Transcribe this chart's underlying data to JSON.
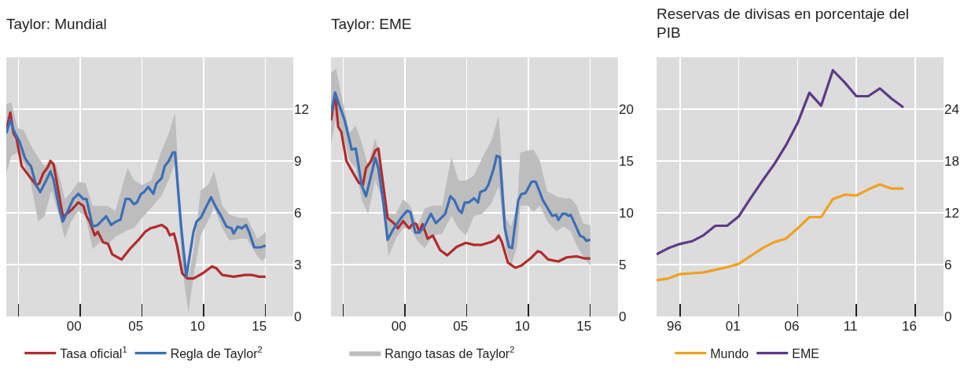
{
  "chart_data": [
    {
      "type": "line",
      "title": "Taylor: Mundial",
      "xlim": [
        "1995-01",
        "2018-04"
      ],
      "xticks": [
        {
          "value": "1996-01",
          "label": null
        },
        {
          "value": "2000-07",
          "label": "00"
        },
        {
          "value": "2001-01",
          "label": null
        },
        {
          "value": "2005-07",
          "label": "05"
        },
        {
          "value": "2006-01",
          "label": null
        },
        {
          "value": "2010-07",
          "label": "10"
        },
        {
          "value": "2011-01",
          "label": null
        },
        {
          "value": "2015-07",
          "label": "15"
        },
        {
          "value": "2016-01",
          "label": null
        }
      ],
      "ylim": [
        0,
        15
      ],
      "yticks": [
        0,
        3,
        6,
        9,
        12
      ],
      "grid": true,
      "legend": "bottom",
      "series": [
        {
          "type": "area",
          "color": "#bdbdbd",
          "x": [
            "1995-01",
            "1995-06",
            "1995-12",
            "1996-06",
            "1996-12",
            "1997-08",
            "1998-02",
            "1998-09",
            "1999-02",
            "1999-10",
            "2000-04",
            "2000-11",
            "2001-06",
            "2002-01",
            "2002-08",
            "2003-04",
            "2003-11",
            "2004-11",
            "2005-05",
            "2006-01",
            "2006-10",
            "2007-08",
            "2008-03",
            "2008-09",
            "2009-04",
            "2009-10",
            "2010-03",
            "2010-10",
            "2011-05",
            "2011-11",
            "2012-07",
            "2013-02",
            "2013-12",
            "2014-07",
            "2015-05",
            "2015-10",
            "2016-01"
          ],
          "values": [
            null,
            null,
            null,
            null,
            null,
            null,
            null,
            null,
            null,
            null,
            null,
            null,
            null,
            null,
            null,
            null,
            null,
            null,
            null,
            null,
            null,
            null,
            null,
            null,
            null,
            null,
            null,
            null,
            null,
            null,
            null,
            null,
            null,
            null,
            null,
            null,
            null
          ],
          "upper": [
            12.3,
            12.4,
            10.9,
            10.8,
            10.0,
            9.2,
            8.7,
            9.0,
            8.7,
            6.8,
            7.2,
            7.8,
            7.7,
            6.4,
            6.4,
            6.4,
            6.1,
            8.6,
            7.9,
            7.6,
            7.9,
            9.6,
            10.6,
            11.8,
            4.4,
            2.3,
            3.8,
            7.3,
            7.6,
            8.4,
            6.4,
            5.9,
            5.7,
            5.7,
            4.5,
            4.7,
            4.9
          ],
          "lower": [
            8.3,
            9.3,
            9.5,
            8.9,
            8.0,
            5.5,
            5.8,
            7.3,
            6.3,
            4.5,
            5.5,
            6.1,
            5.8,
            3.9,
            4.3,
            4.2,
            4.6,
            5.0,
            5.1,
            5.7,
            6.3,
            7.0,
            7.9,
            8.9,
            2.9,
            0.2,
            2.3,
            4.7,
            5.5,
            6.3,
            5.1,
            4.4,
            4.5,
            4.5,
            3.5,
            3.2,
            3.4
          ]
        },
        {
          "name": "Tasa oficial$^{1}$",
          "color": "#b22c2c",
          "x": [
            "1995-01",
            "1995-05",
            "1995-08",
            "1995-11",
            "1996-04",
            "1996-09",
            "1997-06",
            "1997-09",
            "1998-01",
            "1998-05",
            "1998-08",
            "1998-11",
            "1999-08",
            "1999-11",
            "2000-05",
            "2000-11",
            "2001-04",
            "2001-07",
            "2001-10",
            "2002-03",
            "2002-06",
            "2002-11",
            "2003-04",
            "2003-08",
            "2004-05",
            "2005-01",
            "2005-09",
            "2006-04",
            "2006-09",
            "2007-03",
            "2007-08",
            "2008-01",
            "2008-04",
            "2008-08",
            "2008-11",
            "2009-04",
            "2009-09",
            "2010-03",
            "2010-12",
            "2011-09",
            "2012-01",
            "2012-07",
            "2013-06",
            "2014-05",
            "2014-12",
            "2015-07",
            "2016-01"
          ],
          "values": [
            10.8,
            11.8,
            10.6,
            10.3,
            8.7,
            8.3,
            7.6,
            7.7,
            8.3,
            8.6,
            9.0,
            8.8,
            5.8,
            5.9,
            6.2,
            6.6,
            6.4,
            5.8,
            5.5,
            4.7,
            4.9,
            4.3,
            4.2,
            3.6,
            3.3,
            3.9,
            4.4,
            4.9,
            5.1,
            5.2,
            5.3,
            5.1,
            4.7,
            4.8,
            4.1,
            2.5,
            2.2,
            2.2,
            2.5,
            2.9,
            2.8,
            2.4,
            2.3,
            2.4,
            2.4,
            2.3,
            2.3
          ]
        },
        {
          "name": "Regla de Taylor$^{2}$",
          "color": "#3a6fb8",
          "x": [
            "1995-01",
            "1995-05",
            "1995-08",
            "1996-02",
            "1996-07",
            "1996-10",
            "1997-01",
            "1997-06",
            "1997-10",
            "1998-04",
            "1998-08",
            "1998-11",
            "1999-04",
            "1999-08",
            "1999-12",
            "2000-06",
            "2000-11",
            "2001-04",
            "2001-07",
            "2002-01",
            "2002-06",
            "2003-02",
            "2003-07",
            "2003-12",
            "2004-04",
            "2004-09",
            "2005-01",
            "2005-05",
            "2005-08",
            "2005-12",
            "2006-03",
            "2006-07",
            "2006-12",
            "2007-03",
            "2007-08",
            "2007-11",
            "2008-03",
            "2008-07",
            "2008-09",
            "2009-03",
            "2009-08",
            "2010-03",
            "2010-06",
            "2010-10",
            "2011-03",
            "2011-08",
            "2012-01",
            "2012-06",
            "2012-11",
            "2013-04",
            "2013-06",
            "2013-10",
            "2014-02",
            "2014-06",
            "2014-09",
            "2015-02",
            "2015-08",
            "2016-01"
          ],
          "values": [
            10.6,
            11.4,
            10.8,
            10.1,
            9.2,
            8.9,
            8.7,
            7.6,
            7.2,
            7.9,
            8.4,
            7.9,
            6.4,
            5.5,
            6.0,
            6.8,
            7.1,
            6.8,
            6.8,
            5.2,
            5.3,
            5.8,
            5.3,
            5.5,
            5.6,
            6.8,
            6.8,
            6.5,
            6.6,
            7.1,
            7.2,
            7.5,
            7.1,
            7.7,
            8.0,
            8.7,
            9.0,
            9.5,
            9.5,
            5.2,
            2.3,
            4.9,
            5.5,
            5.7,
            6.3,
            6.9,
            6.3,
            5.8,
            5.2,
            5.1,
            4.8,
            5.2,
            5.1,
            5.3,
            4.9,
            4.0,
            4.0,
            4.1
          ]
        }
      ]
    },
    {
      "type": "line",
      "title": "Taylor: EME",
      "xlim": [
        "1995-01",
        "2018-04"
      ],
      "xticks": [
        {
          "value": "1996-01",
          "label": null
        },
        {
          "value": "2000-07",
          "label": "00"
        },
        {
          "value": "2001-01",
          "label": null
        },
        {
          "value": "2005-07",
          "label": "05"
        },
        {
          "value": "2006-01",
          "label": null
        },
        {
          "value": "2010-07",
          "label": "10"
        },
        {
          "value": "2011-01",
          "label": null
        },
        {
          "value": "2015-07",
          "label": "15"
        },
        {
          "value": "2016-01",
          "label": null
        }
      ],
      "ylim": [
        0,
        25
      ],
      "yticks": [
        0,
        5,
        10,
        15,
        20
      ],
      "grid": true,
      "legend": "bottom",
      "series": [
        {
          "type": "area",
          "name": "Rango tasas de Taylor$^{2}$",
          "color": "#bdbdbd",
          "x": [
            "1995-01",
            "1995-06",
            "1995-12",
            "1996-07",
            "1997-01",
            "1997-07",
            "1998-01",
            "1998-08",
            "1999-02",
            "1999-09",
            "2000-04",
            "2000-11",
            "2001-06",
            "2002-01",
            "2002-08",
            "2003-04",
            "2004-01",
            "2004-10",
            "2005-05",
            "2005-12",
            "2006-08",
            "2007-04",
            "2008-01",
            "2008-08",
            "2009-03",
            "2009-08",
            "2010-02",
            "2010-05",
            "2010-12",
            "2011-06",
            "2011-12",
            "2012-07",
            "2013-04",
            "2013-11",
            "2014-06",
            "2014-12",
            "2015-06",
            "2016-01"
          ],
          "values": [
            null,
            null,
            null,
            null,
            null,
            null,
            null,
            null,
            null,
            null,
            null,
            null,
            null,
            null,
            null,
            null,
            null,
            null,
            null,
            null,
            null,
            null,
            null,
            null,
            null,
            null,
            null,
            null,
            null,
            null,
            null,
            null,
            null,
            null,
            null,
            null,
            null,
            null
          ],
          "upper": [
            23.5,
            23.9,
            20.9,
            17.7,
            18.4,
            16.7,
            14.6,
            17.2,
            14.8,
            9.9,
            9.9,
            11.3,
            10.7,
            8.7,
            10.4,
            10.7,
            10.7,
            15.4,
            13.1,
            13.1,
            13.6,
            15.3,
            17.0,
            19.4,
            9.5,
            8.7,
            10.7,
            15.8,
            16.0,
            16.1,
            15.0,
            12.1,
            11.6,
            11.4,
            11.4,
            10.7,
            9.0,
            8.8
          ],
          "lower": [
            16.7,
            19.2,
            17.9,
            15.0,
            14.3,
            11.2,
            9.9,
            13.1,
            11.6,
            5.8,
            7.5,
            8.5,
            8.5,
            7.3,
            6.6,
            7.8,
            8.0,
            9.7,
            8.5,
            7.8,
            9.7,
            9.9,
            10.9,
            12.6,
            6.6,
            4.9,
            6.8,
            10.7,
            10.7,
            10.1,
            10.7,
            9.2,
            8.2,
            8.7,
            8.2,
            6.8,
            5.8,
            4.9
          ]
        },
        {
          "color": "#b22c2c",
          "x": [
            "1995-01",
            "1995-05",
            "1995-08",
            "1995-11",
            "1996-04",
            "1996-09",
            "1997-04",
            "1997-08",
            "1997-11",
            "1998-04",
            "1998-08",
            "1998-11",
            "1999-08",
            "2000-02",
            "2000-06",
            "2000-11",
            "2001-05",
            "2001-09",
            "2001-12",
            "2002-03",
            "2002-06",
            "2002-11",
            "2003-04",
            "2003-11",
            "2004-06",
            "2005-03",
            "2005-12",
            "2006-08",
            "2007-03",
            "2008-01",
            "2008-05",
            "2008-08",
            "2008-11",
            "2009-05",
            "2009-12",
            "2010-06",
            "2011-03",
            "2011-10",
            "2012-01",
            "2012-08",
            "2013-06",
            "2014-02",
            "2014-12",
            "2015-07",
            "2016-01"
          ],
          "values": [
            18.9,
            21.5,
            18.3,
            17.8,
            15.0,
            14.1,
            12.9,
            12.7,
            14.3,
            15.0,
            16.0,
            16.2,
            9.5,
            9.0,
            8.5,
            9.2,
            8.5,
            9.0,
            8.9,
            8.2,
            8.9,
            7.5,
            7.8,
            6.4,
            5.9,
            6.7,
            7.1,
            6.9,
            6.9,
            7.2,
            7.4,
            7.8,
            7.2,
            5.2,
            4.7,
            4.9,
            5.6,
            6.3,
            6.2,
            5.5,
            5.3,
            5.7,
            5.8,
            5.6,
            5.6
          ]
        },
        {
          "color": "#3a6fb8",
          "x": [
            "1995-01",
            "1995-05",
            "1995-09",
            "1996-02",
            "1996-07",
            "1996-09",
            "1997-01",
            "1997-07",
            "1997-11",
            "1998-04",
            "1998-08",
            "1998-11",
            "1999-04",
            "1999-08",
            "2000-02",
            "2000-09",
            "2001-03",
            "2001-06",
            "2001-11",
            "2002-03",
            "2002-08",
            "2003-02",
            "2003-07",
            "2003-12",
            "2004-04",
            "2004-09",
            "2005-01",
            "2005-05",
            "2005-08",
            "2005-11",
            "2006-03",
            "2006-08",
            "2006-12",
            "2007-02",
            "2007-07",
            "2007-10",
            "2008-03",
            "2008-06",
            "2008-09",
            "2009-02",
            "2009-06",
            "2009-09",
            "2010-03",
            "2010-06",
            "2010-10",
            "2011-04",
            "2011-08",
            "2012-03",
            "2012-06",
            "2012-12",
            "2013-04",
            "2013-06",
            "2013-10",
            "2014-01",
            "2014-04",
            "2014-06",
            "2014-11",
            "2015-03",
            "2015-07",
            "2015-09",
            "2016-01"
          ],
          "values": [
            19.6,
            21.6,
            20.4,
            19.0,
            17.0,
            16.1,
            16.2,
            12.6,
            11.6,
            13.6,
            15.3,
            14.3,
            10.9,
            7.4,
            8.5,
            9.5,
            10.2,
            10.1,
            8.1,
            8.1,
            8.7,
            9.9,
            9.0,
            9.5,
            9.9,
            11.6,
            11.2,
            10.3,
            10.0,
            11.0,
            11.0,
            11.4,
            11.0,
            12.0,
            12.2,
            12.7,
            14.2,
            15.5,
            15.4,
            8.5,
            6.7,
            6.6,
            11.2,
            11.8,
            11.9,
            13.0,
            13.0,
            11.2,
            10.7,
            9.7,
            9.8,
            9.3,
            9.9,
            9.9,
            9.7,
            9.8,
            8.7,
            7.8,
            7.6,
            7.3,
            7.4
          ]
        }
      ]
    },
    {
      "type": "line",
      "title": "Reservas de divisas en porcentaje del PIB",
      "xlim": [
        "1995-01",
        "2019-06"
      ],
      "xticks": [
        {
          "value": "1996-07",
          "label": "96"
        },
        {
          "value": "1997-01",
          "label": null
        },
        {
          "value": "2001-07",
          "label": "01"
        },
        {
          "value": "2002-01",
          "label": null
        },
        {
          "value": "2006-07",
          "label": "06"
        },
        {
          "value": "2007-01",
          "label": null
        },
        {
          "value": "2011-07",
          "label": "11"
        },
        {
          "value": "2012-01",
          "label": null
        },
        {
          "value": "2016-07",
          "label": "16"
        },
        {
          "value": "2017-01",
          "label": null
        }
      ],
      "ylim": [
        0,
        30
      ],
      "yticks": [
        0,
        6,
        12,
        18,
        24
      ],
      "grid": true,
      "legend": "bottom",
      "x": [
        "1995-01",
        "1996-01",
        "1997-01",
        "1998-01",
        "1999-01",
        "2000-01",
        "2001-01",
        "2002-01",
        "2003-01",
        "2004-01",
        "2005-01",
        "2006-01",
        "2007-01",
        "2008-01",
        "2009-01",
        "2010-01",
        "2011-01",
        "2012-01",
        "2013-01",
        "2014-01",
        "2015-01",
        "2016-01"
      ],
      "series": [
        {
          "name": "Mundo",
          "color": "#f0a020",
          "values": [
            4.2,
            4.4,
            4.9,
            5.0,
            5.1,
            5.4,
            5.7,
            6.1,
            7.0,
            7.9,
            8.6,
            9.0,
            10.2,
            11.5,
            11.5,
            13.6,
            14.1,
            14.0,
            14.7,
            15.3,
            14.8,
            14.8
          ]
        },
        {
          "name": "EME",
          "color": "#5e3a8a",
          "values": [
            7.2,
            7.9,
            8.4,
            8.7,
            9.4,
            10.5,
            10.5,
            11.6,
            13.7,
            15.7,
            17.6,
            19.8,
            22.4,
            25.9,
            24.4,
            28.5,
            27.1,
            25.5,
            25.5,
            26.4,
            25.2,
            24.2
          ]
        }
      ]
    }
  ]
}
